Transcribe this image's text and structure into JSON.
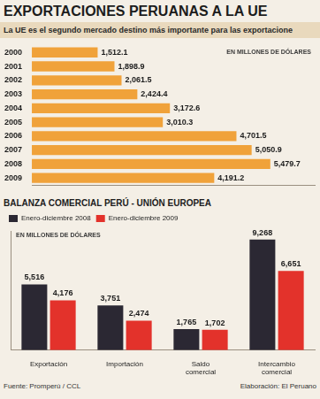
{
  "title": "EXPORTACIONES PERUANAS A LA UE",
  "subtitle": "La UE es el segundo mercado destino más importante para las exportacione",
  "source": "Fuente: Promperú / CCL",
  "credit": "Elaboración: El Peruano",
  "chart_data": [
    {
      "type": "bar",
      "orientation": "horizontal",
      "annotation": "EN MILLONES DE DÓLARES",
      "categories": [
        "2000",
        "2001",
        "2002",
        "2003",
        "2004",
        "2005",
        "2006",
        "2007",
        "2008",
        "2009"
      ],
      "values": [
        1512.1,
        1898.9,
        2061.5,
        2424.4,
        3172.6,
        3010.3,
        4701.5,
        5050.9,
        5479.7,
        4191.2
      ],
      "value_labels": [
        "1,512.1",
        "1,898.9",
        "2,061.5",
        "2,424.4",
        "3,172.6",
        "3,010.3",
        "4,701.5",
        "5,050.9",
        "5,479.7",
        "4,191.2"
      ],
      "color": "#f0a23a",
      "xlim": [
        0,
        6500
      ],
      "grid": false,
      "data_labels": true,
      "tick_labels": "y"
    },
    {
      "type": "bar",
      "title": "BALANZA COMERCIAL PERÚ - UNIÓN EUROPEA",
      "annotation": "EN MILLONES DE DÓLARES",
      "categories": [
        "Exportación",
        "Importación",
        "Saldo comercial",
        "Intercambio comercial"
      ],
      "series": [
        {
          "name": "Enero-diciembre 2008",
          "color": "#2b2833",
          "values": [
            5516,
            3751,
            1765,
            9268
          ],
          "value_labels": [
            "5,516",
            "3,751",
            "1,765",
            "9,268"
          ]
        },
        {
          "name": "Enero-diciembre 2009",
          "color": "#e3322b",
          "values": [
            4176,
            2474,
            1702,
            6651
          ],
          "value_labels": [
            "4,176",
            "2,474",
            "1,702",
            "6,651"
          ]
        }
      ],
      "ylim": [
        0,
        10000
      ],
      "grid": false,
      "legend": "top-left",
      "data_labels": true,
      "tick_labels": "x"
    }
  ]
}
